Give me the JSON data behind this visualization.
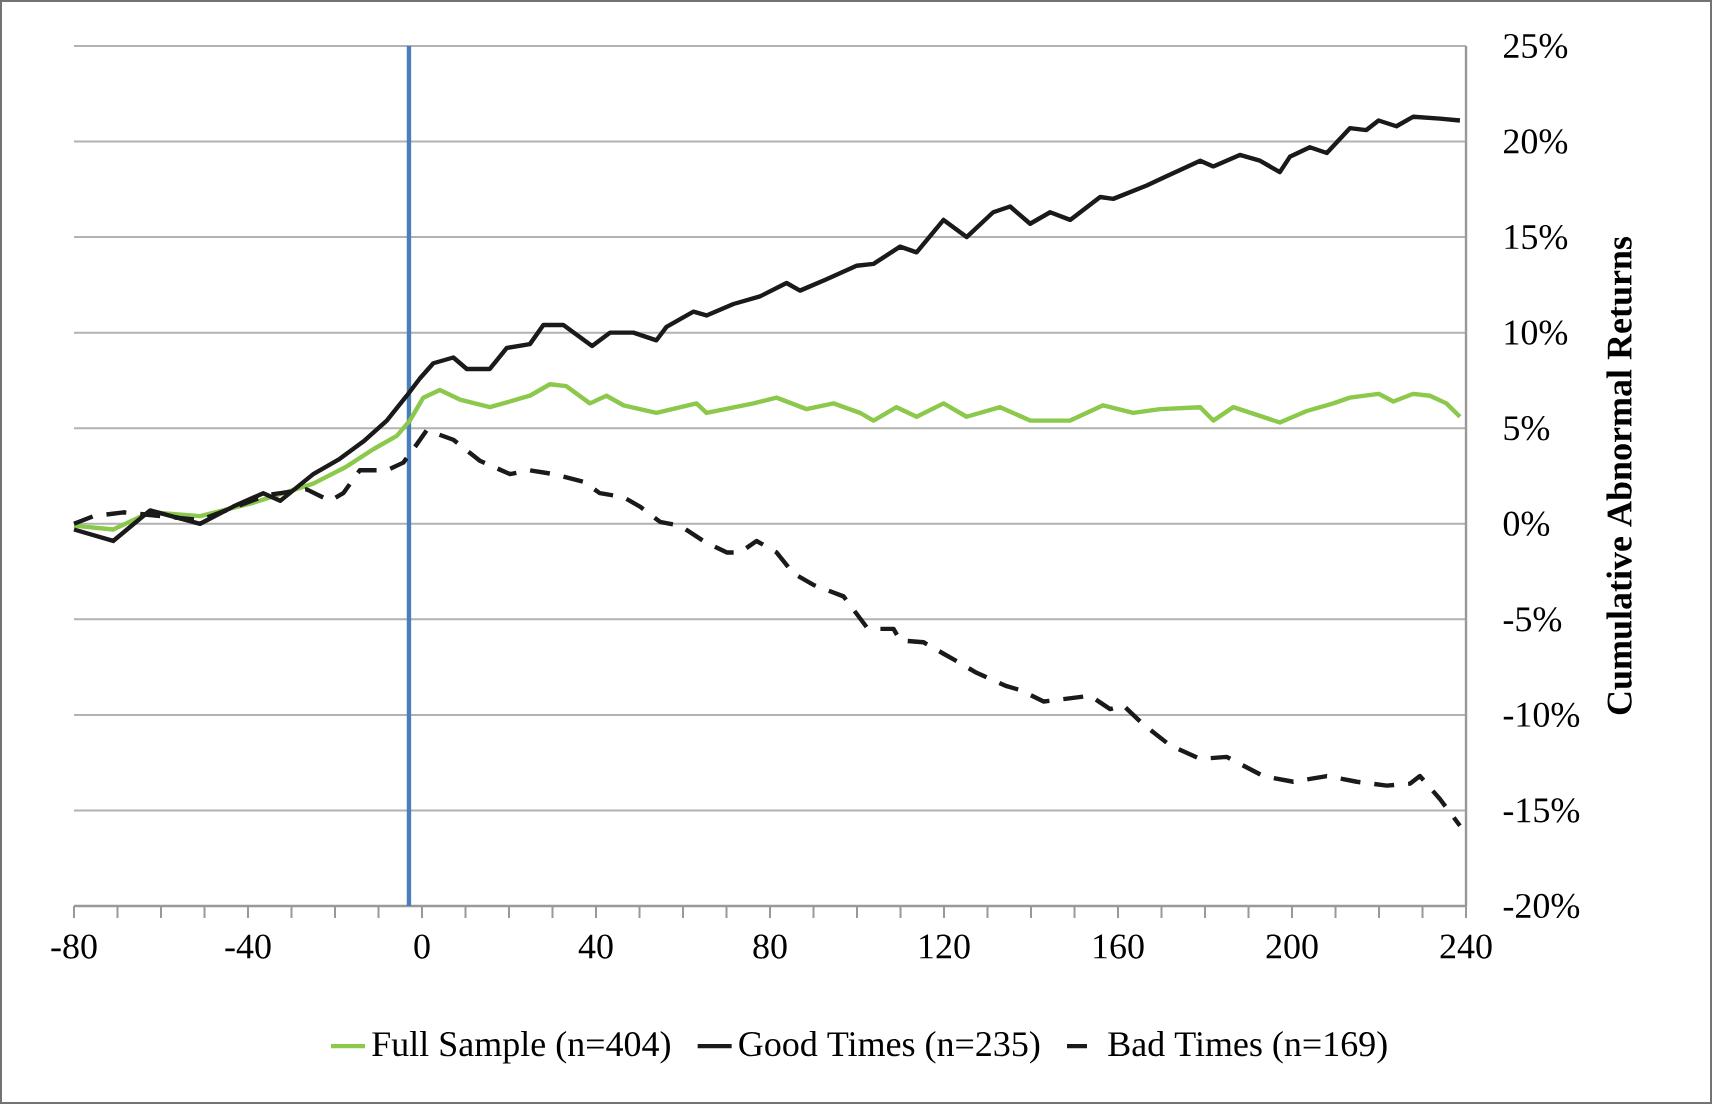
{
  "chart_data": {
    "type": "line",
    "ylabel": "Cumulative Abnormal Returns",
    "legend": "bottom",
    "grid": "y",
    "marker": "none",
    "tick_labels": "xy",
    "xlim": [
      -80,
      240
    ],
    "ylim": [
      -20,
      25
    ],
    "xticks": [
      -80,
      {
        "value": -70,
        "label": null
      },
      {
        "value": -60,
        "label": null
      },
      {
        "value": -50,
        "label": null
      },
      -40,
      {
        "value": -30,
        "label": null
      },
      {
        "value": -20,
        "label": null
      },
      {
        "value": -10,
        "label": null
      },
      0,
      {
        "value": 10,
        "label": null
      },
      {
        "value": 20,
        "label": null
      },
      {
        "value": 30,
        "label": null
      },
      40,
      {
        "value": 50,
        "label": null
      },
      {
        "value": 60,
        "label": null
      },
      {
        "value": 70,
        "label": null
      },
      80,
      {
        "value": 90,
        "label": null
      },
      {
        "value": 100,
        "label": null
      },
      {
        "value": 110,
        "label": null
      },
      120,
      {
        "value": 130,
        "label": null
      },
      {
        "value": 140,
        "label": null
      },
      {
        "value": 150,
        "label": null
      },
      160,
      {
        "value": 170,
        "label": null
      },
      {
        "value": 180,
        "label": null
      },
      {
        "value": 190,
        "label": null
      },
      200,
      {
        "value": 210,
        "label": null
      },
      {
        "value": 220,
        "label": null
      },
      {
        "value": 230,
        "label": null
      },
      240
    ],
    "yticks": [
      {
        "value": -20,
        "label": "-20%"
      },
      {
        "value": -15,
        "label": "-15%"
      },
      {
        "value": -10,
        "label": "-10%"
      },
      {
        "value": -5,
        "label": "-5%"
      },
      {
        "value": 0,
        "label": "0%"
      },
      {
        "value": 5,
        "label": "5%"
      },
      {
        "value": 10,
        "label": "10%"
      },
      {
        "value": 15,
        "label": "15%"
      },
      {
        "value": 20,
        "label": "20%"
      },
      {
        "value": 25,
        "label": "25%"
      }
    ],
    "ref_lines": [
      {
        "axis": "x",
        "value": -3,
        "color": "#4a7ebb"
      }
    ],
    "series": [
      {
        "name": "Full Sample (n=404)",
        "color": "#8cc84b",
        "line_style": "solid",
        "x": [
          -80,
          -71,
          -62.5,
          -51,
          -38.8,
          -25,
          -17.3,
          -11.2,
          -5.8,
          -2.8,
          0.3,
          4.1,
          8.7,
          15.6,
          24.8,
          29.4,
          33.2,
          38.6,
          42.4,
          46.3,
          53.9,
          63.1,
          65.4,
          76.2,
          81.5,
          88.4,
          94.6,
          100.7,
          103.8,
          109.1,
          113.7,
          119.9,
          125.2,
          132.9,
          139.8,
          149,
          156.6,
          163.5,
          169.7,
          178.9,
          181.9,
          186.5,
          197.2,
          203.4,
          209.5,
          213.3,
          219.9,
          223.3,
          227.9,
          231.7,
          235.5,
          238.6
        ],
        "values": [
          -0.1,
          -0.3,
          0.6,
          0.4,
          1.1,
          2.1,
          3.0,
          3.9,
          4.6,
          5.4,
          6.6,
          7.0,
          6.5,
          6.1,
          6.7,
          7.3,
          7.2,
          6.3,
          6.7,
          6.2,
          5.8,
          6.3,
          5.8,
          6.3,
          6.6,
          6.0,
          6.3,
          5.8,
          5.4,
          6.1,
          5.6,
          6.3,
          5.6,
          6.1,
          5.4,
          5.4,
          6.2,
          5.8,
          6.0,
          6.1,
          5.4,
          6.1,
          5.3,
          5.9,
          6.3,
          6.6,
          6.8,
          6.4,
          6.8,
          6.7,
          6.3,
          5.6
        ]
      },
      {
        "name": "Good Times (n=235)",
        "color": "#1a1a1a",
        "line_style": "solid",
        "x": [
          -80,
          -71,
          -62.5,
          -51,
          -43.4,
          -36.5,
          -32.6,
          -25,
          -18.9,
          -13.5,
          -8.1,
          -3.5,
          -0.5,
          2.6,
          7.2,
          10.3,
          15.6,
          19.5,
          24.8,
          27.9,
          32.5,
          39.1,
          43.2,
          48.6,
          53.9,
          56.2,
          62.4,
          65.4,
          71.6,
          77.7,
          83.8,
          86.9,
          93,
          99.9,
          103.8,
          109.9,
          113.7,
          119.9,
          125.2,
          131.3,
          135.2,
          139.8,
          144.4,
          149,
          155.9,
          158.9,
          166.6,
          170.4,
          178.9,
          181.9,
          188,
          192.6,
          197.2,
          199.5,
          204.1,
          208,
          213.3,
          217.1,
          219.9,
          224,
          227.9,
          234,
          238.6
        ],
        "values": [
          -0.3,
          -0.9,
          0.7,
          0,
          0.9,
          1.6,
          1.2,
          2.6,
          3.4,
          4.3,
          5.4,
          6.7,
          7.6,
          8.4,
          8.7,
          8.1,
          8.1,
          9.2,
          9.4,
          10.4,
          10.4,
          9.3,
          10.0,
          10.0,
          9.6,
          10.3,
          11.1,
          10.9,
          11.5,
          11.9,
          12.6,
          12.2,
          12.8,
          13.5,
          13.6,
          14.5,
          14.2,
          15.9,
          15.0,
          16.3,
          16.6,
          15.7,
          16.3,
          15.9,
          17.1,
          17.0,
          17.7,
          18.1,
          19.0,
          18.7,
          19.3,
          19.0,
          18.4,
          19.2,
          19.7,
          19.4,
          20.7,
          20.6,
          21.1,
          20.8,
          21.3,
          21.2,
          21.1
        ]
      },
      {
        "name": "Bad Times (n=169)",
        "color": "#1a1a1a",
        "line_style": "dashed",
        "x": [
          -80,
          -75.5,
          -68.6,
          -51,
          -35.7,
          -26.5,
          -21.1,
          -18.1,
          -14.3,
          -8.1,
          -4.3,
          -2,
          1.1,
          7.2,
          13.3,
          20.2,
          24.8,
          30.2,
          37.1,
          40.9,
          46.3,
          50.1,
          54.7,
          59.3,
          65.4,
          70.1,
          73.1,
          76.9,
          81.5,
          85.4,
          90,
          96.9,
          102.2,
          105.3,
          108.4,
          109.9,
          115.3,
          119.9,
          122.2,
          127.5,
          134.4,
          137.5,
          142.9,
          146.7,
          153.6,
          158.2,
          161.2,
          165.8,
          172,
          178.9,
          185,
          193.4,
          200.3,
          208,
          214.9,
          221.8,
          227.1,
          229.4,
          234,
          238.6
        ],
        "values": [
          0.0,
          0.4,
          0.6,
          0.2,
          1.5,
          1.8,
          1.2,
          1.6,
          2.8,
          2.8,
          3.2,
          3.9,
          4.9,
          4.4,
          3.3,
          2.6,
          2.8,
          2.6,
          2.2,
          1.6,
          1.4,
          0.9,
          0.1,
          -0.1,
          -1.0,
          -1.5,
          -1.5,
          -0.9,
          -1.5,
          -2.6,
          -3.2,
          -3.8,
          -5.4,
          -5.5,
          -5.5,
          -6.1,
          -6.2,
          -6.8,
          -7.1,
          -7.8,
          -8.5,
          -8.7,
          -9.3,
          -9.2,
          -9.0,
          -9.7,
          -9.5,
          -10.5,
          -11.6,
          -12.3,
          -12.2,
          -13.2,
          -13.5,
          -13.2,
          -13.5,
          -13.7,
          -13.6,
          -13.2,
          -14.4,
          -15.8
        ]
      }
    ]
  }
}
